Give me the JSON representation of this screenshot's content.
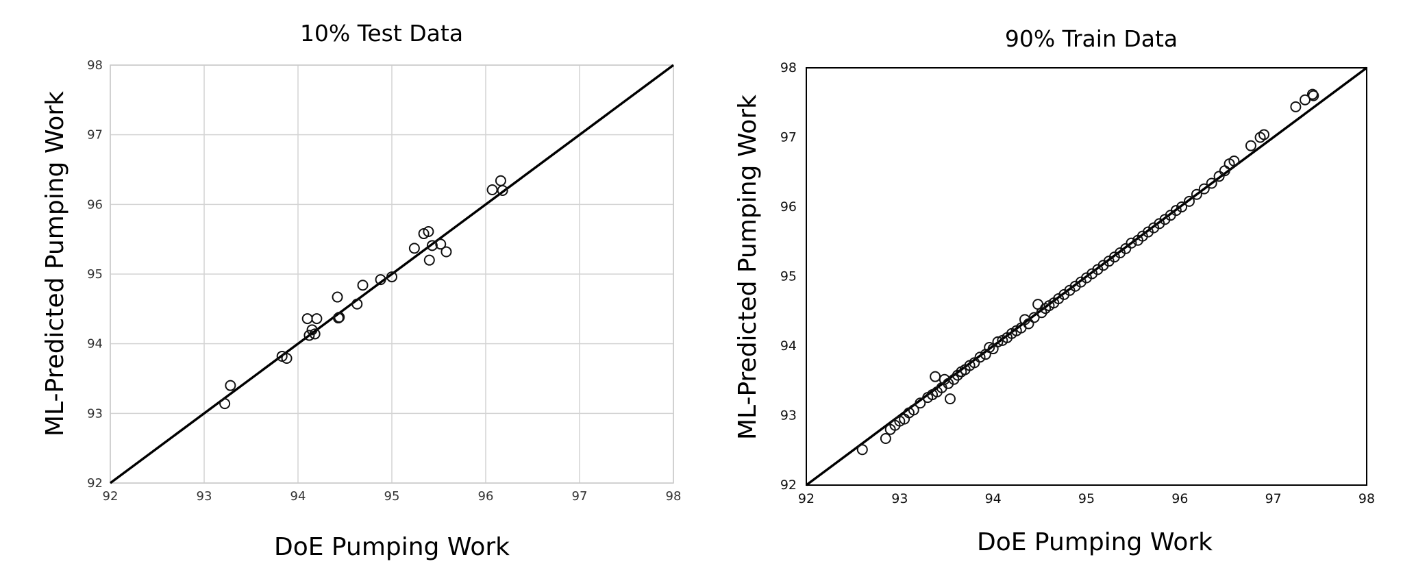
{
  "chart_data": [
    {
      "type": "scatter",
      "title": "10% Test Data",
      "xlabel": "DoE Pumping Work",
      "ylabel": "ML-Predicted Pumping Work",
      "xlim": [
        92,
        98
      ],
      "ylim": [
        92,
        98
      ],
      "xticks": [
        "92",
        "93",
        "94",
        "95",
        "96",
        "97",
        "98"
      ],
      "yticks": [
        "92",
        "93",
        "94",
        "95",
        "96",
        "97",
        "98"
      ],
      "grid": true,
      "reference_line": "y = x",
      "points": [
        [
          93.22,
          93.14
        ],
        [
          93.28,
          93.4
        ],
        [
          93.83,
          93.82
        ],
        [
          93.88,
          93.79
        ],
        [
          94.1,
          94.36
        ],
        [
          94.12,
          94.12
        ],
        [
          94.15,
          94.2
        ],
        [
          94.18,
          94.14
        ],
        [
          94.2,
          94.36
        ],
        [
          94.42,
          94.67
        ],
        [
          94.43,
          94.37
        ],
        [
          94.44,
          94.38
        ],
        [
          94.63,
          94.57
        ],
        [
          94.69,
          94.84
        ],
        [
          94.88,
          94.92
        ],
        [
          95.0,
          94.96
        ],
        [
          95.24,
          95.37
        ],
        [
          95.34,
          95.58
        ],
        [
          95.39,
          95.61
        ],
        [
          95.4,
          95.2
        ],
        [
          95.43,
          95.41
        ],
        [
          95.52,
          95.43
        ],
        [
          95.58,
          95.32
        ],
        [
          96.07,
          96.21
        ],
        [
          96.16,
          96.34
        ],
        [
          96.18,
          96.2
        ]
      ]
    },
    {
      "type": "scatter",
      "title": "90% Train Data",
      "xlabel": "DoE Pumping Work",
      "ylabel": "ML-Predicted Pumping Work",
      "xlim": [
        92,
        98
      ],
      "ylim": [
        92,
        98
      ],
      "xticks": [
        "92",
        "93",
        "94",
        "95",
        "96",
        "97",
        "98"
      ],
      "yticks": [
        "92",
        "93",
        "94",
        "95",
        "96",
        "97",
        "98"
      ],
      "grid": false,
      "reference_line": "y = x",
      "points": [
        [
          92.6,
          92.51
        ],
        [
          92.85,
          92.67
        ],
        [
          92.9,
          92.8
        ],
        [
          92.95,
          92.86
        ],
        [
          93.0,
          92.92
        ],
        [
          93.05,
          92.95
        ],
        [
          93.1,
          93.04
        ],
        [
          93.15,
          93.08
        ],
        [
          93.22,
          93.18
        ],
        [
          93.3,
          93.26
        ],
        [
          93.35,
          93.3
        ],
        [
          93.38,
          93.56
        ],
        [
          93.4,
          93.34
        ],
        [
          93.45,
          93.4
        ],
        [
          93.48,
          93.52
        ],
        [
          93.52,
          93.46
        ],
        [
          93.54,
          93.24
        ],
        [
          93.58,
          93.52
        ],
        [
          93.62,
          93.58
        ],
        [
          93.66,
          93.63
        ],
        [
          93.7,
          93.66
        ],
        [
          93.75,
          93.72
        ],
        [
          93.8,
          93.76
        ],
        [
          93.86,
          93.84
        ],
        [
          93.92,
          93.88
        ],
        [
          93.96,
          93.98
        ],
        [
          94.0,
          93.96
        ],
        [
          94.05,
          94.06
        ],
        [
          94.1,
          94.08
        ],
        [
          94.15,
          94.12
        ],
        [
          94.2,
          94.18
        ],
        [
          94.25,
          94.22
        ],
        [
          94.3,
          94.26
        ],
        [
          94.34,
          94.38
        ],
        [
          94.38,
          94.32
        ],
        [
          94.44,
          94.41
        ],
        [
          94.48,
          94.6
        ],
        [
          94.52,
          94.48
        ],
        [
          94.56,
          94.54
        ],
        [
          94.6,
          94.58
        ],
        [
          94.65,
          94.62
        ],
        [
          94.7,
          94.68
        ],
        [
          94.76,
          94.74
        ],
        [
          94.82,
          94.8
        ],
        [
          94.88,
          94.86
        ],
        [
          94.94,
          94.92
        ],
        [
          95.0,
          94.98
        ],
        [
          95.06,
          95.04
        ],
        [
          95.12,
          95.1
        ],
        [
          95.18,
          95.16
        ],
        [
          95.24,
          95.22
        ],
        [
          95.3,
          95.28
        ],
        [
          95.36,
          95.34
        ],
        [
          95.42,
          95.4
        ],
        [
          95.48,
          95.48
        ],
        [
          95.55,
          95.52
        ],
        [
          95.6,
          95.58
        ],
        [
          95.66,
          95.64
        ],
        [
          95.72,
          95.7
        ],
        [
          95.78,
          95.76
        ],
        [
          95.84,
          95.82
        ],
        [
          95.9,
          95.88
        ],
        [
          95.96,
          95.95
        ],
        [
          96.02,
          96.0
        ],
        [
          96.1,
          96.08
        ],
        [
          96.18,
          96.18
        ],
        [
          96.26,
          96.26
        ],
        [
          96.34,
          96.34
        ],
        [
          96.42,
          96.44
        ],
        [
          96.48,
          96.52
        ],
        [
          96.53,
          96.62
        ],
        [
          96.58,
          96.66
        ],
        [
          96.76,
          96.88
        ],
        [
          96.86,
          97.0
        ],
        [
          96.9,
          97.04
        ],
        [
          97.24,
          97.44
        ],
        [
          97.34,
          97.54
        ],
        [
          97.42,
          97.62
        ],
        [
          97.43,
          97.6
        ]
      ]
    }
  ]
}
